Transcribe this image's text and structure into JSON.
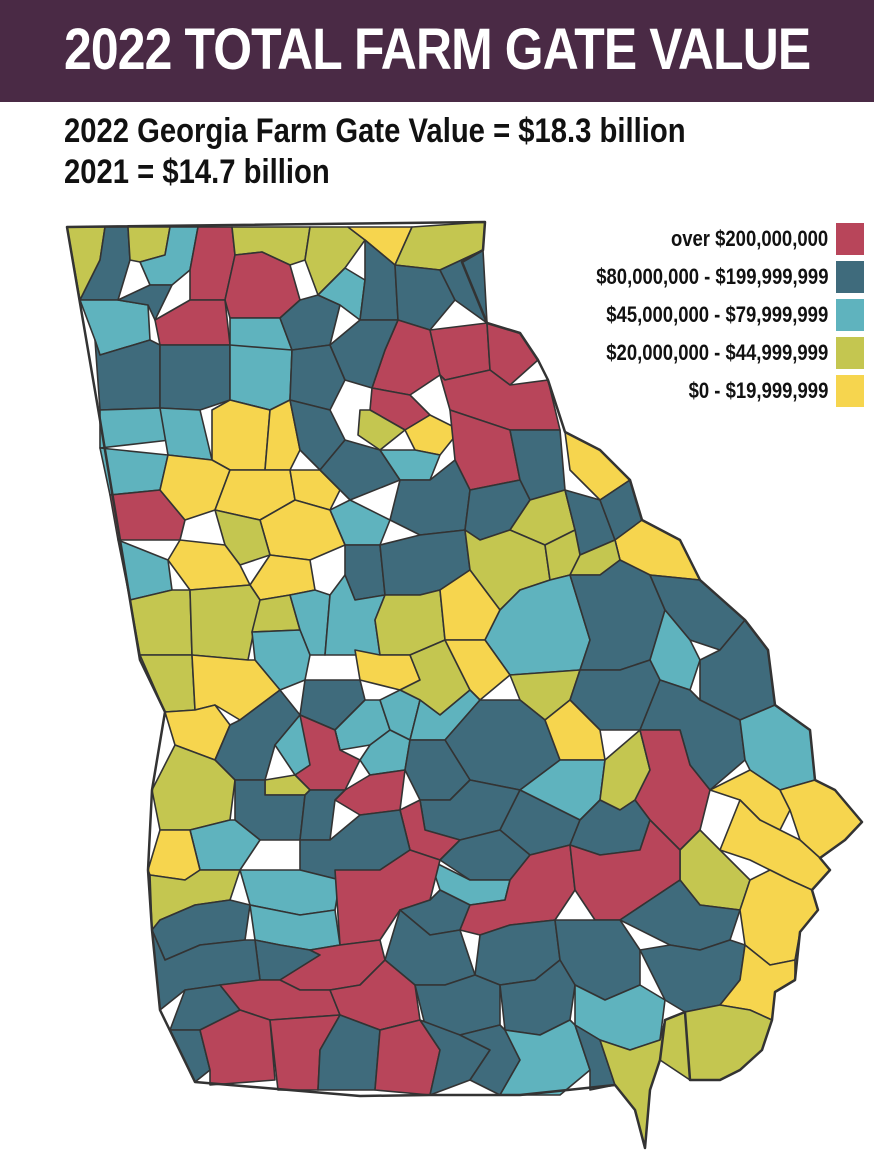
{
  "header": {
    "title": "2022 TOTAL FARM GATE VALUE",
    "subtitle_line1": "2022 Georgia Farm Gate Value = $18.3 billion",
    "subtitle_line2": "2021 = $14.7 billion"
  },
  "colors": {
    "banner": "#4a2a45",
    "county_border": "#333333"
  },
  "legend": [
    {
      "label": "over $200,000,000",
      "color": "#b8455a"
    },
    {
      "label": "$80,000,000 - $199,999,999",
      "color": "#3f6b7c"
    },
    {
      "label": "$45,000,000 - $79,999,999",
      "color": "#5fb3be"
    },
    {
      "label": "$20,000,000 - $44,999,999",
      "color": "#c4c650"
    },
    {
      "label": "$0 - $19,999,999",
      "color": "#f6d54e"
    }
  ]
}
